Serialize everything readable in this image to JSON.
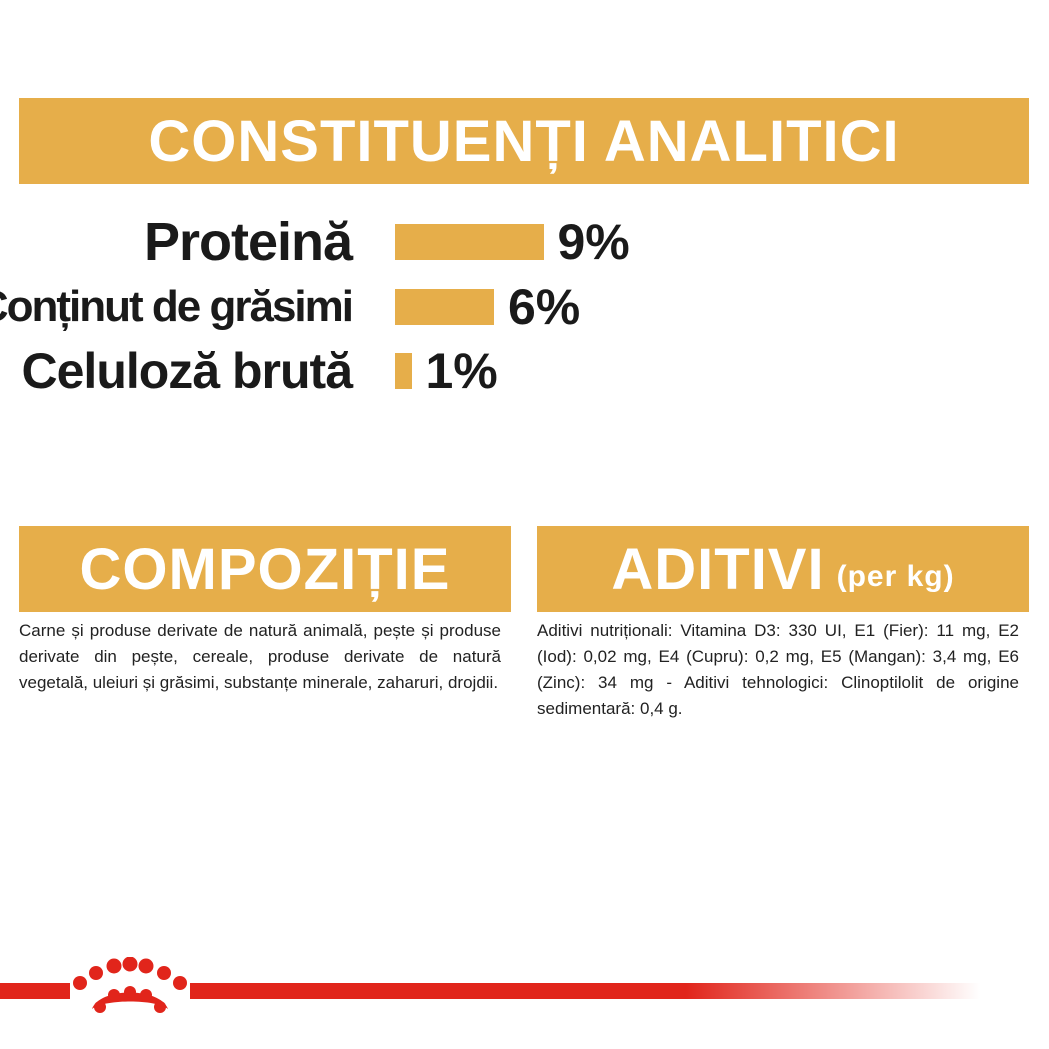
{
  "headers": {
    "analitici": "CONSTITUENȚI ANALITICI",
    "compozitie": "COMPOZIȚIE",
    "aditivi": "ADITIVI",
    "aditivi_sub": "(per kg)"
  },
  "constituents": [
    {
      "label": "Proteină",
      "value": "9%",
      "percent": 9
    },
    {
      "label": "Conținut de grăsimi",
      "value": "6%",
      "percent": 6
    },
    {
      "label": "Celuloză brută",
      "value": "1%",
      "percent": 1
    }
  ],
  "compozitie_text": "Carne și produse derivate de natură animală, pește și produse derivate din pește, cereale, produse derivate de natură vegetală, uleiuri și grăsimi, substanțe minerale, zaharuri, drojdii.",
  "aditivi_text": "Aditivi nutriționali: Vitamina D3: 330 UI, E1 (Fier): 11 mg, E2 (Iod): 0,02 mg, E4 (Cupru): 0,2 mg, E5 (Mangan): 3,4 mg, E6 (Zinc): 34 mg - Aditivi tehnologici: Clinoptilolit de origine sedimentară: 0,4 g.",
  "colors": {
    "accent": "#e6ae4a",
    "brand_red": "#e1251b"
  },
  "icons": [
    "royal-crown-logo-icon"
  ]
}
